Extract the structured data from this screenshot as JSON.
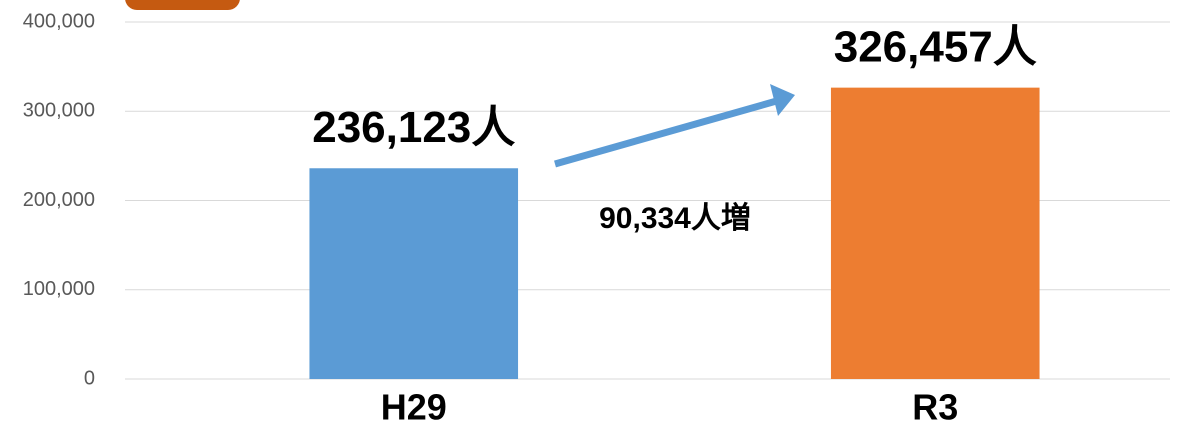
{
  "chart_data": {
    "type": "bar",
    "categories": [
      "H29",
      "R3"
    ],
    "values": [
      236123,
      326457
    ],
    "value_labels": [
      "236,123人",
      "326,457人"
    ],
    "colors": [
      "#5b9bd5",
      "#ed7d31"
    ],
    "annotation": "90,334人増",
    "ylim": [
      0,
      400000
    ],
    "yticks": [
      0,
      {
        "value": 100000,
        "label": "100,000"
      },
      {
        "value": 200000,
        "label": "200,000"
      },
      {
        "value": 300000,
        "label": "300,000"
      },
      {
        "value": 400000,
        "label": "400,000"
      }
    ],
    "grid": true
  }
}
